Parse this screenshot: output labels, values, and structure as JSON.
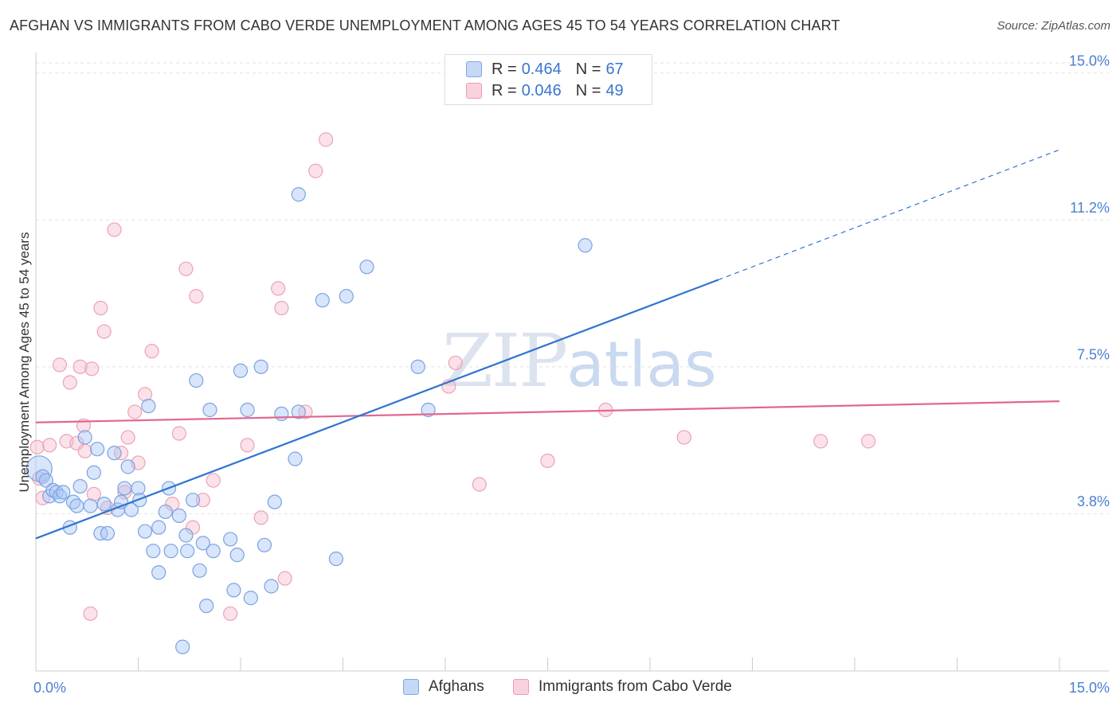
{
  "title": "AFGHAN VS IMMIGRANTS FROM CABO VERDE UNEMPLOYMENT AMONG AGES 45 TO 54 YEARS CORRELATION CHART",
  "source": "Source: ZipAtlas.com",
  "watermark": {
    "zip": "ZIP",
    "atlas": "atlas"
  },
  "legend": {
    "rows": [
      {
        "r_label": "R =",
        "r_value": "0.464",
        "n_label": "N =",
        "n_value": "67",
        "color": "#a9c6f3"
      },
      {
        "r_label": "R =",
        "r_value": "0.046",
        "n_label": "N =",
        "n_value": "49",
        "color": "#f6bccd"
      }
    ]
  },
  "bottom_legend": {
    "afghans": "Afghans",
    "cabo_verde": "Immigrants from Cabo Verde"
  },
  "chart_data": {
    "type": "scatter",
    "xlabel": "",
    "ylabel": "Unemployment Among Ages 45 to 54 years",
    "x_tick_labels": [
      "0.0%",
      "15.0%"
    ],
    "y_tick_labels": [
      "15.0%",
      "11.2%",
      "7.5%",
      "3.8%"
    ],
    "y_tick_values": [
      15.0,
      11.25,
      7.5,
      3.75
    ],
    "xlim": [
      0,
      15
    ],
    "ylim": [
      0,
      15.4
    ],
    "grid": "horizontal dashed",
    "colors": {
      "afghans": "#a9c6f3",
      "afghans_line": "#2f74d0",
      "cabo_verde": "#f6bccd",
      "cabo_verde_line": "#e0688f"
    },
    "series": [
      {
        "name": "Afghans",
        "trend": {
          "x0": 0,
          "y0": 3.12,
          "x1": 10.0,
          "y1": 9.72,
          "dash_to_x": 15.0,
          "dash_to_y": 13.04
        },
        "points": [
          [
            0.05,
            4.9
          ],
          [
            0.1,
            4.7
          ],
          [
            0.15,
            4.6
          ],
          [
            0.2,
            4.2
          ],
          [
            0.25,
            4.35
          ],
          [
            0.3,
            4.3
          ],
          [
            0.35,
            4.2
          ],
          [
            0.4,
            4.3
          ],
          [
            0.5,
            3.4
          ],
          [
            0.55,
            4.05
          ],
          [
            0.6,
            3.95
          ],
          [
            0.65,
            4.45
          ],
          [
            0.72,
            5.7
          ],
          [
            0.8,
            3.95
          ],
          [
            0.85,
            4.8
          ],
          [
            0.9,
            5.4
          ],
          [
            0.95,
            3.25
          ],
          [
            1.0,
            4.0
          ],
          [
            1.05,
            3.25
          ],
          [
            1.15,
            5.3
          ],
          [
            1.2,
            3.85
          ],
          [
            1.25,
            4.05
          ],
          [
            1.3,
            4.4
          ],
          [
            1.35,
            4.95
          ],
          [
            1.4,
            3.85
          ],
          [
            1.5,
            4.4
          ],
          [
            1.52,
            4.1
          ],
          [
            1.6,
            3.3
          ],
          [
            1.65,
            6.5
          ],
          [
            1.72,
            2.8
          ],
          [
            1.8,
            3.4
          ],
          [
            1.8,
            2.25
          ],
          [
            1.9,
            3.8
          ],
          [
            1.95,
            4.4
          ],
          [
            1.98,
            2.8
          ],
          [
            2.1,
            3.7
          ],
          [
            2.15,
            0.35
          ],
          [
            2.2,
            3.2
          ],
          [
            2.22,
            2.8
          ],
          [
            2.3,
            4.1
          ],
          [
            2.35,
            7.15
          ],
          [
            2.4,
            2.3
          ],
          [
            2.45,
            3.0
          ],
          [
            2.5,
            1.4
          ],
          [
            2.55,
            6.4
          ],
          [
            2.6,
            2.8
          ],
          [
            2.85,
            3.1
          ],
          [
            2.9,
            1.8
          ],
          [
            2.95,
            2.7
          ],
          [
            3.0,
            7.4
          ],
          [
            3.1,
            6.4
          ],
          [
            3.15,
            1.6
          ],
          [
            3.3,
            7.5
          ],
          [
            3.35,
            2.95
          ],
          [
            3.45,
            1.9
          ],
          [
            3.5,
            4.05
          ],
          [
            3.6,
            6.3
          ],
          [
            3.8,
            5.15
          ],
          [
            3.85,
            6.35
          ],
          [
            3.85,
            11.9
          ],
          [
            4.2,
            9.2
          ],
          [
            4.4,
            2.6
          ],
          [
            4.55,
            9.3
          ],
          [
            4.85,
            10.05
          ],
          [
            5.6,
            7.5
          ],
          [
            5.75,
            6.4
          ],
          [
            8.05,
            10.6
          ]
        ]
      },
      {
        "name": "Immigrants from Cabo Verde",
        "trend": {
          "x0": 0,
          "y0": 6.08,
          "x1": 15.0,
          "y1": 6.62
        },
        "points": [
          [
            0.02,
            5.45
          ],
          [
            0.05,
            4.65
          ],
          [
            0.1,
            4.15
          ],
          [
            0.2,
            5.5
          ],
          [
            0.35,
            7.55
          ],
          [
            0.45,
            5.6
          ],
          [
            0.5,
            7.1
          ],
          [
            0.6,
            5.55
          ],
          [
            0.65,
            7.5
          ],
          [
            0.7,
            6.0
          ],
          [
            0.72,
            5.35
          ],
          [
            0.8,
            1.2
          ],
          [
            0.82,
            7.45
          ],
          [
            0.85,
            4.25
          ],
          [
            0.95,
            9.0
          ],
          [
            1.0,
            8.4
          ],
          [
            1.05,
            3.9
          ],
          [
            1.15,
            11.0
          ],
          [
            1.25,
            5.3
          ],
          [
            1.3,
            4.3
          ],
          [
            1.35,
            5.7
          ],
          [
            1.45,
            6.35
          ],
          [
            1.5,
            5.05
          ],
          [
            1.6,
            6.8
          ],
          [
            1.7,
            7.9
          ],
          [
            2.0,
            4.0
          ],
          [
            2.1,
            5.8
          ],
          [
            2.2,
            10.0
          ],
          [
            2.3,
            3.4
          ],
          [
            2.35,
            9.3
          ],
          [
            2.45,
            4.1
          ],
          [
            2.6,
            4.6
          ],
          [
            2.85,
            1.2
          ],
          [
            3.1,
            5.5
          ],
          [
            3.3,
            3.65
          ],
          [
            3.55,
            9.5
          ],
          [
            3.6,
            9.0
          ],
          [
            3.65,
            2.1
          ],
          [
            3.95,
            6.35
          ],
          [
            4.1,
            12.5
          ],
          [
            4.25,
            13.3
          ],
          [
            6.05,
            7.0
          ],
          [
            6.15,
            7.6
          ],
          [
            6.5,
            4.5
          ],
          [
            7.5,
            5.1
          ],
          [
            8.35,
            6.4
          ],
          [
            9.5,
            5.7
          ],
          [
            11.5,
            5.6
          ],
          [
            12.2,
            5.6
          ]
        ]
      }
    ]
  }
}
